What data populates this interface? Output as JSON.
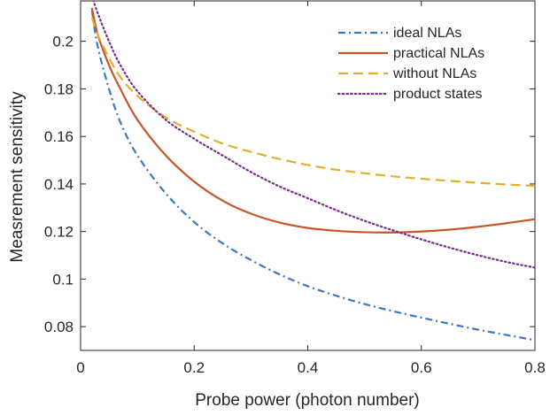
{
  "chart_data": {
    "type": "line",
    "title": "",
    "xlabel": "Probe power (photon number)",
    "ylabel": "Measrement sensitivity",
    "xlim": [
      0,
      0.8
    ],
    "ylim": [
      0.07,
      0.217
    ],
    "xticks": [
      0,
      0.2,
      0.4,
      0.6,
      0.8
    ],
    "xtick_labels": [
      "0",
      "0.2",
      "0.4",
      "0.6",
      "0.8"
    ],
    "yticks": [
      0.08,
      0.1,
      0.12,
      0.14,
      0.16,
      0.18,
      0.2
    ],
    "ytick_labels": [
      "0.08",
      "0.1",
      "0.12",
      "0.14",
      "0.16",
      "0.18",
      "0.2"
    ],
    "grid": false,
    "legend_position": "top-right",
    "series": [
      {
        "name": "ideal NLAs",
        "color": "#3b78c4",
        "style": "dashdot",
        "x": [
          0.02,
          0.03,
          0.05,
          0.07,
          0.1,
          0.15,
          0.2,
          0.25,
          0.3,
          0.35,
          0.4,
          0.45,
          0.5,
          0.55,
          0.6,
          0.65,
          0.7,
          0.75,
          0.8
        ],
        "y": [
          0.213,
          0.198,
          0.18,
          0.166,
          0.152,
          0.136,
          0.124,
          0.115,
          0.108,
          0.102,
          0.097,
          0.093,
          0.0895,
          0.0865,
          0.0838,
          0.0812,
          0.0787,
          0.0765,
          0.0743
        ]
      },
      {
        "name": "practical NLAs",
        "color": "#c5562a",
        "style": "solid",
        "x": [
          0.02,
          0.03,
          0.05,
          0.07,
          0.1,
          0.15,
          0.2,
          0.25,
          0.3,
          0.35,
          0.4,
          0.45,
          0.5,
          0.55,
          0.6,
          0.65,
          0.7,
          0.75,
          0.8
        ],
        "y": [
          0.214,
          0.203,
          0.19,
          0.18,
          0.167,
          0.152,
          0.141,
          0.133,
          0.1275,
          0.1238,
          0.1215,
          0.1203,
          0.1197,
          0.1196,
          0.12,
          0.1208,
          0.122,
          0.1235,
          0.1252
        ]
      },
      {
        "name": "without NLAs",
        "color": "#e5ad2c",
        "style": "dashed",
        "x": [
          0.02,
          0.03,
          0.05,
          0.07,
          0.1,
          0.15,
          0.2,
          0.25,
          0.3,
          0.35,
          0.4,
          0.45,
          0.5,
          0.55,
          0.6,
          0.65,
          0.7,
          0.75,
          0.8
        ],
        "y": [
          0.21,
          0.203,
          0.193,
          0.185,
          0.177,
          0.168,
          0.162,
          0.157,
          0.1535,
          0.1505,
          0.148,
          0.146,
          0.1445,
          0.1432,
          0.1422,
          0.1413,
          0.1405,
          0.1398,
          0.1392
        ]
      },
      {
        "name": "product states",
        "color": "#7a2d8c",
        "style": "dotted",
        "x": [
          0.02,
          0.03,
          0.05,
          0.07,
          0.1,
          0.15,
          0.2,
          0.25,
          0.3,
          0.35,
          0.4,
          0.45,
          0.5,
          0.55,
          0.6,
          0.65,
          0.7,
          0.75,
          0.8
        ],
        "y": [
          0.219,
          0.212,
          0.2,
          0.19,
          0.179,
          0.167,
          0.159,
          0.152,
          0.145,
          0.139,
          0.134,
          0.129,
          0.1245,
          0.1205,
          0.1167,
          0.1132,
          0.11,
          0.1072,
          0.1048
        ]
      }
    ]
  }
}
